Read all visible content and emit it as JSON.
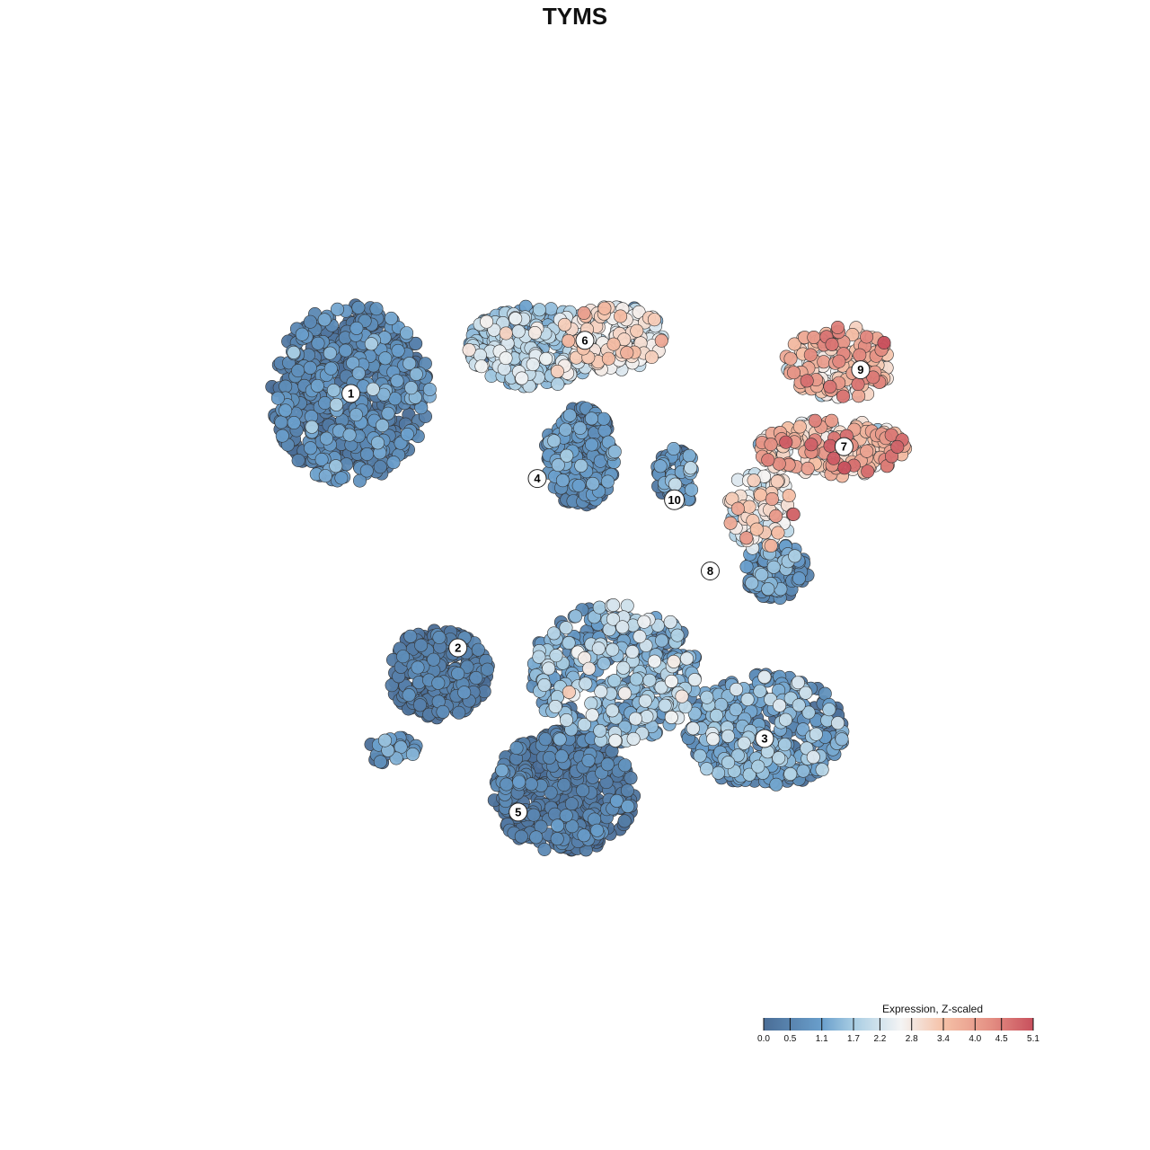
{
  "chart_data": {
    "type": "scatter",
    "title": "TYMS",
    "xlabel": "",
    "ylabel": "",
    "grid": false,
    "axes_visible": false,
    "xlim": [
      0,
      100
    ],
    "ylim": [
      0,
      100
    ],
    "legend": {
      "title": "Expression, Z-scaled",
      "placement": "bottom-right",
      "range": [
        0.0,
        5.1
      ],
      "ticks": [
        0.0,
        0.5,
        1.1,
        1.7,
        2.2,
        2.8,
        3.4,
        4.0,
        4.5,
        5.1
      ],
      "tick_labels": [
        "0.0",
        "0.5",
        "1.1",
        "1.7",
        "2.2",
        "2.8",
        "3.4",
        "4.0",
        "4.5",
        "5.1"
      ],
      "colors": [
        "#4a6d96",
        "#6a9fcc",
        "#a8cde3",
        "#f4f4f4",
        "#f5c1a7",
        "#e48f83",
        "#c8505d"
      ],
      "color_stops": [
        0.0,
        1.1,
        1.7,
        2.6,
        3.4,
        4.3,
        5.1
      ]
    },
    "point_style": {
      "fill_default": "#4a6d96",
      "stroke": "#333333",
      "opacity": 0.95
    },
    "clusters": [
      {
        "label": "1",
        "x": 20.5,
        "y": 72.2,
        "rx": 9.5,
        "ry": 11.0,
        "n": 620,
        "expr_mean": 0.35,
        "expr_sd": 0.5
      },
      {
        "label": "6",
        "x": 42.5,
        "y": 78.0,
        "rx": 8.0,
        "ry": 5.0,
        "n": 300,
        "expr_mean": 1.6,
        "expr_sd": 0.6
      },
      {
        "label": "6",
        "x": 52.0,
        "y": 79.0,
        "rx": 6.0,
        "ry": 4.0,
        "n": 180,
        "expr_mean": 2.4,
        "expr_sd": 0.6
      },
      {
        "label": "9",
        "x": 79.0,
        "y": 76.0,
        "rx": 6.5,
        "ry": 4.5,
        "n": 180,
        "expr_mean": 3.3,
        "expr_sd": 0.8
      },
      {
        "label": "7",
        "x": 78.0,
        "y": 65.5,
        "rx": 9.0,
        "ry": 3.5,
        "n": 220,
        "expr_mean": 3.2,
        "expr_sd": 0.8
      },
      {
        "label": "4",
        "x": 48.0,
        "y": 64.5,
        "rx": 4.3,
        "ry": 6.0,
        "n": 280,
        "expr_mean": 0.5,
        "expr_sd": 0.5
      },
      {
        "label": "10",
        "x": 59.5,
        "y": 62.0,
        "rx": 2.5,
        "ry": 3.5,
        "n": 70,
        "expr_mean": 0.8,
        "expr_sd": 0.6
      },
      {
        "label": "8",
        "x": 69.5,
        "y": 58.0,
        "rx": 4.0,
        "ry": 5.0,
        "n": 90,
        "expr_mean": 2.8,
        "expr_sd": 0.7
      },
      {
        "label": "8",
        "x": 71.5,
        "y": 50.5,
        "rx": 4.0,
        "ry": 3.5,
        "n": 120,
        "expr_mean": 0.6,
        "expr_sd": 0.5
      },
      {
        "label": "2",
        "x": 31.0,
        "y": 38.0,
        "rx": 6.0,
        "ry": 5.5,
        "n": 300,
        "expr_mean": 0.15,
        "expr_sd": 0.3
      },
      {
        "label": "2",
        "x": 52.0,
        "y": 38.0,
        "rx": 10.0,
        "ry": 8.5,
        "n": 420,
        "expr_mean": 1.2,
        "expr_sd": 0.7
      },
      {
        "label": "3",
        "x": 70.0,
        "y": 31.0,
        "rx": 9.5,
        "ry": 7.0,
        "n": 380,
        "expr_mean": 0.9,
        "expr_sd": 0.6
      },
      {
        "label": "5",
        "x": 46.0,
        "y": 23.5,
        "rx": 8.5,
        "ry": 7.5,
        "n": 460,
        "expr_mean": 0.2,
        "expr_sd": 0.35
      },
      {
        "label": "2",
        "x": 25.5,
        "y": 28.5,
        "rx": 3.0,
        "ry": 1.8,
        "n": 30,
        "expr_mean": 0.6,
        "expr_sd": 0.6
      }
    ],
    "cluster_labels": [
      {
        "text": "1",
        "x": 20.5,
        "y": 72.2
      },
      {
        "text": "6",
        "x": 48.5,
        "y": 78.7
      },
      {
        "text": "9",
        "x": 81.5,
        "y": 75.1
      },
      {
        "text": "7",
        "x": 79.5,
        "y": 65.7
      },
      {
        "text": "4",
        "x": 42.8,
        "y": 61.8
      },
      {
        "text": "10",
        "x": 59.2,
        "y": 59.2
      },
      {
        "text": "8",
        "x": 63.5,
        "y": 50.5
      },
      {
        "text": "2",
        "x": 33.3,
        "y": 41.1
      },
      {
        "text": "3",
        "x": 70.0,
        "y": 30.0
      },
      {
        "text": "5",
        "x": 40.5,
        "y": 21.0
      }
    ]
  }
}
